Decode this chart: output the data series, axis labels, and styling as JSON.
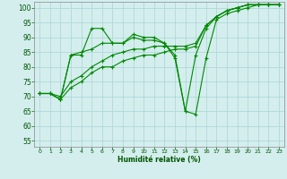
{
  "xlabel": "Humidité relative (%)",
  "bg_color": "#d4eeee",
  "grid_color": "#aad4d4",
  "line_color": "#008800",
  "ylim": [
    53,
    102
  ],
  "xlim": [
    -0.5,
    23.5
  ],
  "yticks": [
    55,
    60,
    65,
    70,
    75,
    80,
    85,
    90,
    95,
    100
  ],
  "xticks": [
    0,
    1,
    2,
    3,
    4,
    5,
    6,
    7,
    8,
    9,
    10,
    11,
    12,
    13,
    14,
    15,
    16,
    17,
    18,
    19,
    20,
    21,
    22,
    23
  ],
  "series": [
    [
      71,
      71,
      69,
      84,
      84,
      93,
      93,
      88,
      88,
      91,
      90,
      90,
      88,
      84,
      65,
      84,
      93,
      97,
      99,
      100,
      101,
      101,
      101,
      101
    ],
    [
      71,
      71,
      69,
      84,
      85,
      86,
      88,
      88,
      88,
      90,
      89,
      89,
      88,
      83,
      65,
      64,
      83,
      96,
      98,
      99,
      100,
      101,
      101,
      101
    ],
    [
      71,
      71,
      70,
      75,
      77,
      80,
      82,
      84,
      85,
      86,
      86,
      87,
      87,
      87,
      87,
      88,
      94,
      97,
      99,
      100,
      101,
      101,
      101,
      101
    ],
    [
      71,
      71,
      69,
      73,
      75,
      78,
      80,
      80,
      82,
      83,
      84,
      84,
      85,
      86,
      86,
      87,
      94,
      97,
      99,
      100,
      101,
      101,
      101,
      101
    ]
  ]
}
